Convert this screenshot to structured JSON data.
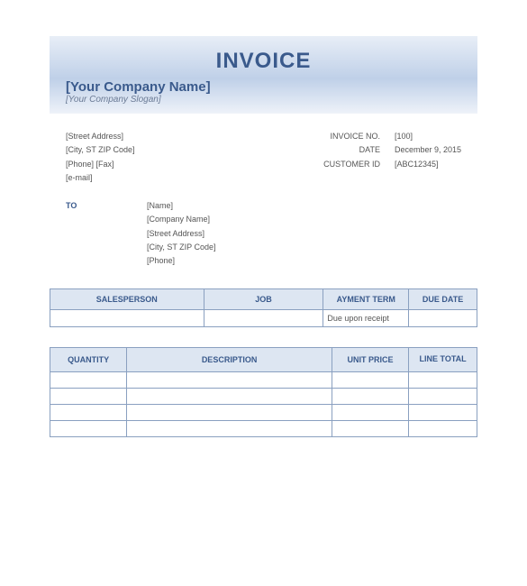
{
  "header": {
    "title": "INVOICE",
    "company_name": "[Your Company Name]",
    "company_slogan": "[Your Company Slogan]"
  },
  "sender": {
    "street": "[Street Address]",
    "city": "[City, ST  ZIP Code]",
    "phone_fax": "[Phone]  [Fax]",
    "email": "[e-mail]"
  },
  "meta": {
    "invoice_no_label": "INVOICE NO.",
    "invoice_no": "[100]",
    "date_label": "DATE",
    "date": "December 9, 2015",
    "customer_id_label": "CUSTOMER ID",
    "customer_id": "[ABC12345]"
  },
  "to": {
    "label": "TO",
    "name": "[Name]",
    "company": "[Company Name]",
    "street": "[Street Address]",
    "city": "[City, ST  ZIP Code]",
    "phone": "[Phone]"
  },
  "table1": {
    "headers": [
      "SALESPERSON",
      "JOB",
      "AYMENT TERM",
      "DUE DATE"
    ],
    "row": [
      "",
      "",
      "Due upon receipt",
      ""
    ]
  },
  "table2": {
    "headers": [
      "QUANTITY",
      "DESCRIPTION",
      "UNIT PRICE",
      "LINE TOTAL"
    ]
  },
  "colors": {
    "accent": "#3a5a8c",
    "header_bg": "#dde6f2",
    "border": "#8aa0c0",
    "band_top": "#e8eef7",
    "band_mid": "#bfd0e8"
  }
}
